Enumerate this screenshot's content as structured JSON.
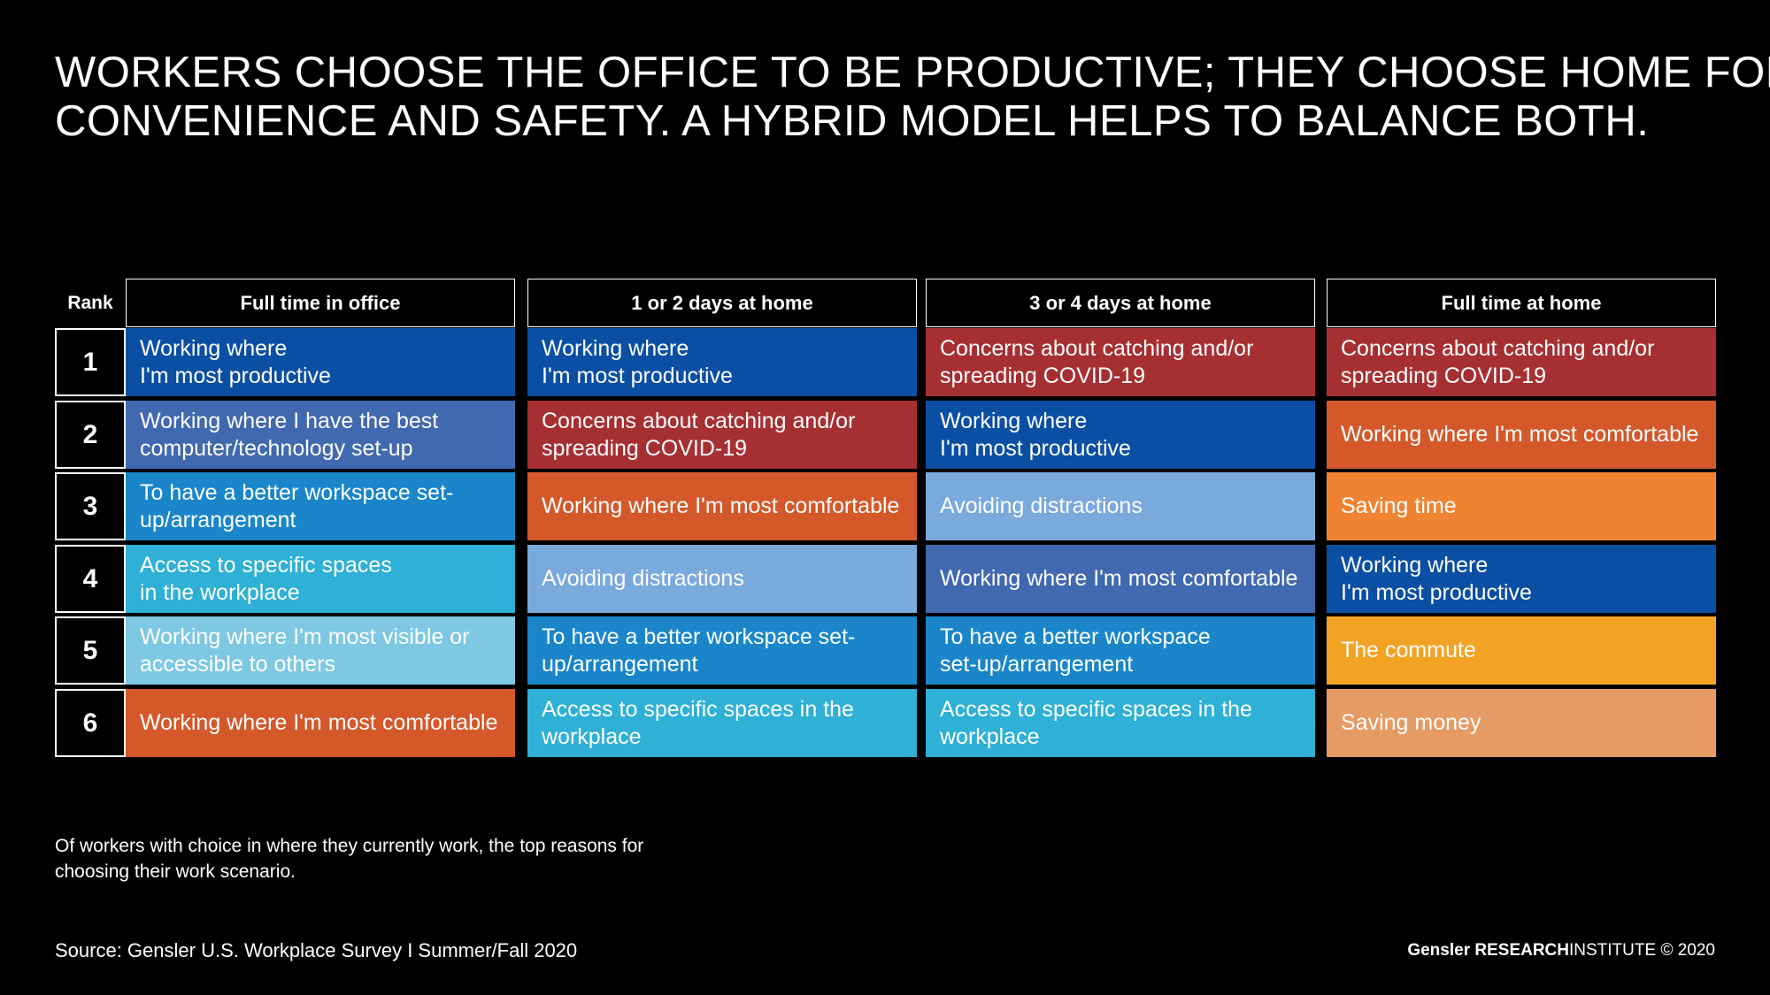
{
  "title_lines": [
    "WORKERS CHOOSE THE OFFICE TO BE PRODUCTIVE; THEY CHOOSE HOME FOR",
    "CONVENIENCE AND SAFETY. A HYBRID MODEL HELPS TO BALANCE BOTH."
  ],
  "note": "Of workers with choice in where they currently work, the top reasons for choosing their work scenario.",
  "source": "Source: Gensler U.S. Workplace Survey I Summer/Fall 2020",
  "brand": {
    "gensler": "Gensler",
    "research": "RESEARCH",
    "institute": "INSTITUTE",
    "copyright": "© 2020"
  },
  "chart_data": {
    "type": "table",
    "rank_header": "Rank",
    "ranks": [
      "1",
      "2",
      "3",
      "4",
      "5",
      "6"
    ],
    "columns": [
      {
        "header": "Full time in office",
        "cells": [
          {
            "text": "Working where\nI'm most productive",
            "color": "#0a4fa3"
          },
          {
            "text": "Working where I have the best computer/technology set-up",
            "color": "#4169b0"
          },
          {
            "text": "To have a better workspace set-up/arrangement",
            "color": "#1a86c9"
          },
          {
            "text": "Access to specific spaces\nin the workplace",
            "color": "#2fb0d6"
          },
          {
            "text": "Working where I'm most visible or accessible to others",
            "color": "#7ec8e3"
          },
          {
            "text": "Working where I'm most comfortable",
            "color": "#d4582a"
          }
        ]
      },
      {
        "header": "1 or 2 days at home",
        "cells": [
          {
            "text": "Working where\nI'm most productive",
            "color": "#0a4fa3"
          },
          {
            "text": "Concerns about catching and/or spreading COVID-19",
            "color": "#a62f32"
          },
          {
            "text": "Working where I'm most comfortable",
            "color": "#d4582a"
          },
          {
            "text": "Avoiding distractions",
            "color": "#7aa9dc"
          },
          {
            "text": "To have a better workspace set-up/arrangement",
            "color": "#1a86c9"
          },
          {
            "text": "Access to specific spaces in the workplace",
            "color": "#2fb0d6"
          }
        ]
      },
      {
        "header": "3 or 4 days at home",
        "cells": [
          {
            "text": "Concerns about catching and/or spreading COVID-19",
            "color": "#a62f32"
          },
          {
            "text": "Working where\nI'm most productive",
            "color": "#0a4fa3"
          },
          {
            "text": "Avoiding distractions",
            "color": "#7aa9dc"
          },
          {
            "text": "Working where I'm most comfortable",
            "color": "#4169b0"
          },
          {
            "text": "To have a better workspace\nset-up/arrangement",
            "color": "#1a86c9"
          },
          {
            "text": "Access to specific spaces in the workplace",
            "color": "#2fb0d6"
          }
        ]
      },
      {
        "header": "Full time at home",
        "cells": [
          {
            "text": "Concerns about catching and/or spreading COVID-19",
            "color": "#a62f32"
          },
          {
            "text": "Working where I'm most comfortable",
            "color": "#d4582a"
          },
          {
            "text": "Saving time",
            "color": "#ef8331"
          },
          {
            "text": "Working where\nI'm most productive",
            "color": "#0a4fa3"
          },
          {
            "text": "The commute",
            "color": "#f3a324"
          },
          {
            "text": "Saving money",
            "color": "#e69a64"
          }
        ]
      }
    ]
  }
}
